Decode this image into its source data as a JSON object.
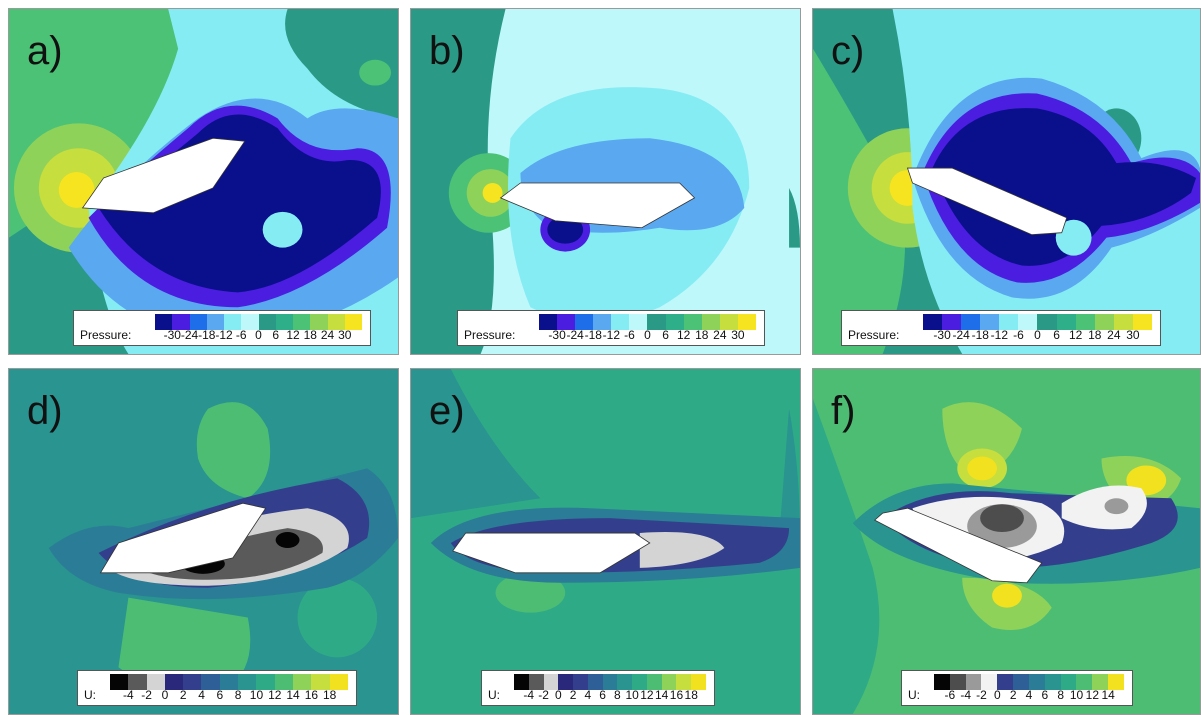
{
  "panels": [
    {
      "id": "a",
      "label": "a)",
      "legend_title": "Pressure:"
    },
    {
      "id": "b",
      "label": "b)",
      "legend_title": "Pressure:"
    },
    {
      "id": "c",
      "label": "c)",
      "legend_title": "Pressure:"
    },
    {
      "id": "d",
      "label": "d)",
      "legend_title": "U:"
    },
    {
      "id": "e",
      "label": "e)",
      "legend_title": "U:"
    },
    {
      "id": "f",
      "label": "f)",
      "legend_title": "U:"
    }
  ],
  "pressure_legend": {
    "ticks": [
      "-30",
      "-24",
      "-18",
      "-12",
      "-6",
      "0",
      "6",
      "12",
      "18",
      "24",
      "30"
    ],
    "colors": [
      "#0a0f8c",
      "#4a1de0",
      "#1d6ee8",
      "#5aa8f0",
      "#86ecf4",
      "#bff8fa",
      "#2a9a86",
      "#2fae8a",
      "#4cc276",
      "#8fd25a",
      "#c6de3e",
      "#f6e420"
    ]
  },
  "velocity_legend_de": {
    "ticks": [
      "-4",
      "-2",
      "0",
      "2",
      "4",
      "6",
      "8",
      "10",
      "12",
      "14",
      "16",
      "18"
    ],
    "colors": [
      "#050505",
      "#5a5a5a",
      "#d4d4d4",
      "#29287a",
      "#333f8c",
      "#2e5f96",
      "#2b7c96",
      "#299490",
      "#2faa86",
      "#4dbd74",
      "#8ed25a",
      "#c6de3e",
      "#f2e11e"
    ]
  },
  "velocity_legend_f": {
    "ticks": [
      "-6",
      "-4",
      "-2",
      "0",
      "2",
      "4",
      "6",
      "8",
      "10",
      "12",
      "14"
    ],
    "colors": [
      "#050505",
      "#4d4d4d",
      "#9a9a9a",
      "#f2f2f2",
      "#333f8c",
      "#2e5f96",
      "#2b7c96",
      "#299490",
      "#2faa86",
      "#4dbd74",
      "#8ed25a",
      "#f2e11e"
    ]
  },
  "colors": {
    "body": "#ffffff",
    "body_outline": "#333333"
  }
}
